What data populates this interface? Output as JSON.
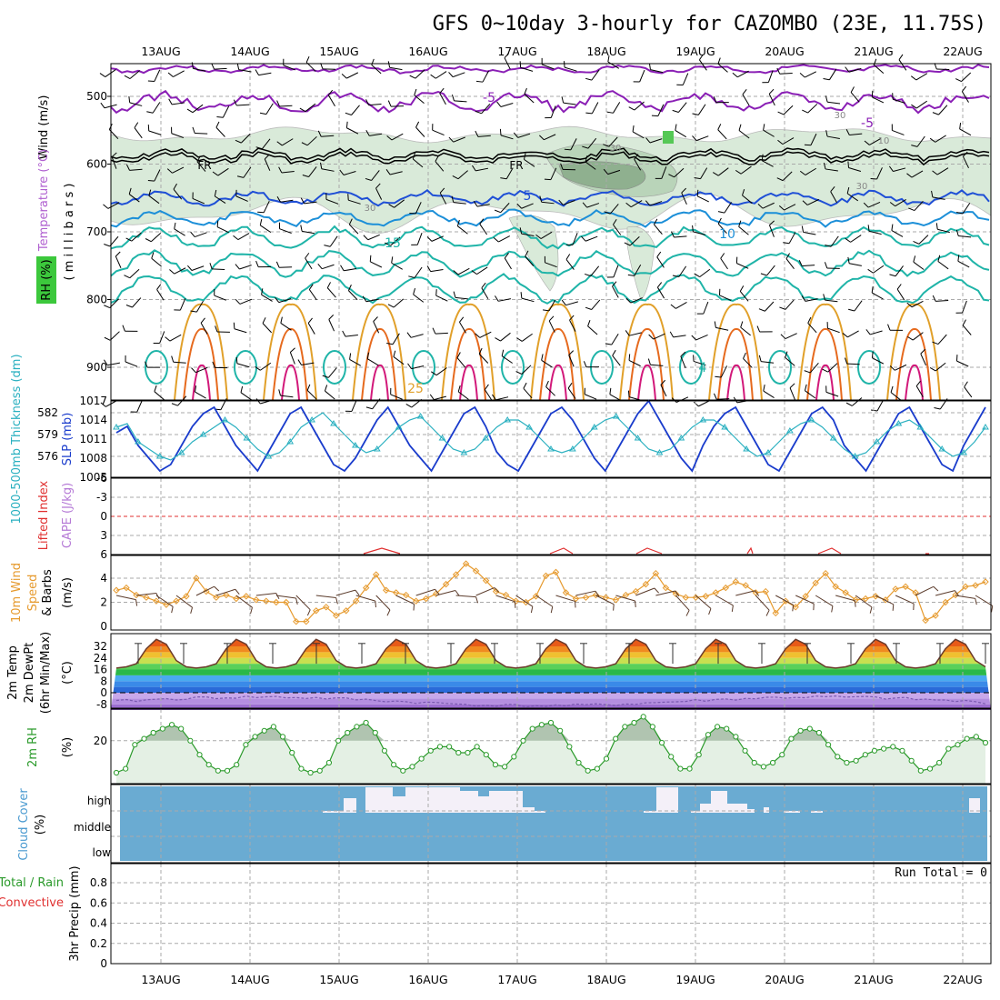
{
  "title": "GFS 0~10day 3-hourly for CAZOMBO (23E, 11.75S)",
  "dates": [
    "13AUG",
    "14AUG",
    "15AUG",
    "16AUG",
    "17AUG",
    "18AUG",
    "19AUG",
    "20AUG",
    "21AUG",
    "22AUG"
  ],
  "colors": {
    "wind_barb": "#000000",
    "temp_contour_purple": "#8a1fb5",
    "temp_contour_blue": "#1f4fd6",
    "temp_contour_lightblue": "#1c8fd8",
    "temp_contour_teal": "#1fb4a8",
    "temp_contour_orange": "#e1a02a",
    "temp_contour_darkorange": "#e66a1e",
    "temp_contour_magenta": "#d2197a",
    "freezing_line": "#000000",
    "rh_fill_light": "#d9ead9",
    "rh_fill_mid": "#b9d4b9",
    "rh_fill_dark": "#8fb08f",
    "slp": "#1a3ccc",
    "thickness": "#2ab0c0",
    "lifted_index": "#e03030",
    "cape": "#b57ad6",
    "wind_speed": "#e69a2e",
    "dewpoint": "#7a5ab0",
    "temp_line": "#6b3a2a",
    "rh2m": "#2a9a2a",
    "cloud_fill": "#6aabd2",
    "cloud_clear": "#f4f0f8",
    "precip_total": "#2a9a2a",
    "precip_conv": "#e03030"
  },
  "panels": {
    "upper_air": {
      "ylabel_wind": "Wind (m/s)",
      "ylabel_temp": "Temperature (°C)",
      "ylabel_rh": "RH (%)",
      "ylabel_pressure": "( m i l l i b a r s )",
      "y_ticks": [
        "500",
        "600",
        "700",
        "800",
        "900"
      ],
      "freezing_label": "FR",
      "contour_labels": [
        "-5",
        "-5",
        "5",
        "10",
        "15",
        "25",
        "4",
        "30",
        "30",
        "30",
        "30",
        "10"
      ]
    },
    "slp_thickness": {
      "ylabel_left": "1000-500mb Thickness (dm)",
      "ylabel_right": "SLP (mb)",
      "left_ticks": [
        "582",
        "579",
        "576"
      ],
      "right_ticks": [
        "1017",
        "1014",
        "1011",
        "1008",
        "1005"
      ]
    },
    "stability": {
      "ylabel_left": "Lifted Index",
      "ylabel_right": "CAPE (J/kg)",
      "left_ticks": [
        "-6",
        "-3",
        "0",
        "3",
        "6"
      ]
    },
    "wind10m": {
      "ylabel_left": "10m Wind",
      "ylabel_mid": "Speed",
      "ylabel_right": "& Barbs",
      "units": "(m/s)",
      "ticks": [
        "4",
        "2",
        "0"
      ]
    },
    "temp2m": {
      "ylabel_1": "2m Temp",
      "ylabel_2": "2m DewPt",
      "ylabel_3": "(6hr Min/Max)",
      "units": "(°C)",
      "ticks": [
        "32",
        "24",
        "16",
        "8",
        "0",
        "-8"
      ]
    },
    "rh2m": {
      "ylabel": "2m RH",
      "units": "(%)",
      "ticks": [
        "20"
      ]
    },
    "cloud": {
      "ylabel": "Cloud Cover",
      "units": "(%)",
      "levels": [
        "high",
        "middle",
        "low"
      ]
    },
    "precip": {
      "ylabel_1": "Total / Rain",
      "ylabel_2": "Convective",
      "ylabel_3": "3hr Precip (mm)",
      "ticks": [
        "0.8",
        "0.6",
        "0.4",
        "0.2",
        "0"
      ],
      "run_total": "Run Total = 0"
    }
  },
  "chart_data": [
    {
      "type": "line",
      "title": "1000-500mb Thickness (dm) / SLP (mb)",
      "series": [
        {
          "name": "SLP (mb)",
          "values": [
            1012,
            1013,
            1010,
            1008,
            1006,
            1007,
            1010,
            1013,
            1015,
            1016,
            1013,
            1010,
            1008,
            1006,
            1009,
            1012,
            1015,
            1016,
            1013,
            1010,
            1007,
            1006,
            1008,
            1011,
            1014,
            1016,
            1013,
            1010,
            1008,
            1006,
            1009,
            1012,
            1015,
            1016,
            1013,
            1009,
            1007,
            1006,
            1009,
            1012,
            1015,
            1016,
            1014,
            1011,
            1008,
            1006,
            1009,
            1012,
            1015,
            1017,
            1014,
            1011,
            1008,
            1006,
            1010,
            1013,
            1015,
            1016,
            1013,
            1010,
            1007,
            1006,
            1009,
            1012,
            1015,
            1016,
            1014,
            1010,
            1008,
            1006,
            1009,
            1012,
            1015,
            1016,
            1013,
            1010,
            1007,
            1006,
            1010,
            1013,
            1016
          ]
        },
        {
          "name": "1000-500mb Thickness (dm)",
          "values": [
            580,
            580.5,
            578,
            577,
            576,
            575.5,
            576.5,
            578,
            579,
            580,
            581,
            580,
            578.5,
            577,
            576,
            576.5,
            578,
            580,
            581,
            582,
            580.5,
            579,
            577.5,
            576.5,
            577,
            578.5,
            580,
            581,
            581.5,
            580,
            578.5,
            577,
            576.5,
            577,
            578.5,
            580,
            581,
            581,
            580,
            578.5,
            577,
            576.5,
            577,
            578.5,
            580,
            581,
            581.5,
            580,
            578.5,
            577,
            576.5,
            577,
            578.5,
            580,
            581,
            581,
            580,
            578.5,
            577,
            576,
            576.5,
            578,
            579.5,
            580.5,
            581,
            580,
            578.5,
            577,
            576,
            576.5,
            578,
            579.5,
            580.5,
            581,
            580,
            578.5,
            577,
            576,
            576.5,
            578,
            580
          ]
        }
      ]
    },
    {
      "type": "line",
      "title": "10m Wind Speed (m/s)",
      "series": [
        {
          "name": "10m Wind Speed",
          "values": [
            3,
            3.2,
            2.6,
            2.4,
            2.1,
            1.8,
            2.1,
            2.5,
            4,
            2.9,
            2.4,
            2.6,
            2.3,
            2.5,
            2.2,
            2.1,
            2,
            2,
            0.4,
            0.4,
            1.3,
            1.6,
            0.9,
            1.3,
            2.1,
            3.2,
            4.3,
            3,
            2.8,
            2.6,
            2.1,
            2.3,
            2.7,
            3.5,
            4.3,
            5.2,
            4.6,
            3.8,
            2.9,
            2.6,
            2.1,
            2,
            2.5,
            4.2,
            4.5,
            2.8,
            2.3,
            2.4,
            2.6,
            2.4,
            2.2,
            2.6,
            2.9,
            3.5,
            4.4,
            3.2,
            2.7,
            2.4,
            2.4,
            2.5,
            2.8,
            3.2,
            3.7,
            3.4,
            2.8,
            2.9,
            1.1,
            2.1,
            1.6,
            2.5,
            3.6,
            4.4,
            3.3,
            2.8,
            2.2,
            2.3,
            2.5,
            2.2,
            3.1,
            3.3,
            2.8,
            0.5,
            0.9,
            2,
            2.6,
            3.3,
            3.4,
            3.7
          ]
        }
      ]
    },
    {
      "type": "line",
      "title": "2m RH (%)",
      "series": [
        {
          "name": "2m RH",
          "values": [
            4,
            6,
            18,
            21,
            24,
            26,
            28,
            26,
            20,
            13,
            8,
            5,
            5,
            8,
            18,
            22,
            25,
            27,
            22,
            14,
            6,
            4,
            5,
            9,
            20,
            24,
            27,
            29,
            24,
            15,
            8,
            5,
            7,
            11,
            15,
            17,
            17,
            14,
            14,
            17,
            13,
            8,
            7,
            12,
            20,
            26,
            28,
            29,
            25,
            17,
            9,
            5,
            6,
            11,
            21,
            27,
            29,
            32,
            27,
            19,
            12,
            6,
            6,
            13,
            23,
            27,
            26,
            22,
            15,
            9,
            7,
            9,
            13,
            21,
            25,
            26,
            24,
            18,
            12,
            9,
            10,
            13,
            15,
            16,
            17,
            15,
            10,
            5,
            6,
            9,
            16,
            18,
            21,
            22,
            19
          ]
        }
      ]
    }
  ]
}
